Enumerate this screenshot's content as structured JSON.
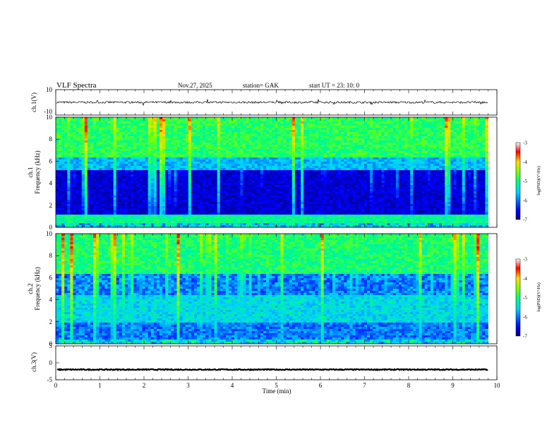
{
  "header": {
    "title": "VLF  Spectra",
    "date": "Nov.27, 2025",
    "station": "station= GAK",
    "start": "start  UT  =    23: 10: 0"
  },
  "chart_data": [
    {
      "type": "line",
      "panel": "ch1-waveform",
      "ylabel": "ch.1(V)",
      "ylim": [
        -10,
        10
      ],
      "yticks": [
        "10",
        "-10"
      ],
      "xlim": [
        0,
        10
      ],
      "baseline": 0,
      "color": "#000000"
    },
    {
      "type": "heatmap",
      "panel": "ch1-spectrogram",
      "ylabel": "ch.1\nFrequency  (kHz)",
      "ylim": [
        0,
        10
      ],
      "yticks": [
        "0",
        "2",
        "4",
        "6",
        "8",
        "10"
      ],
      "xlim": [
        0,
        10
      ],
      "data_extent_min": 9.8,
      "colorbar": {
        "label": "log(PSD)(V²/Hz)",
        "range": [
          -7,
          -3
        ],
        "ticks": [
          "-3",
          "-4",
          "-5",
          "-6",
          "-7"
        ]
      }
    },
    {
      "type": "heatmap",
      "panel": "ch2-spectrogram",
      "ylabel": "ch.2\nFrequency  (kHz)",
      "ylim": [
        0,
        10
      ],
      "yticks": [
        "0",
        "2",
        "4",
        "6",
        "8",
        "10"
      ],
      "xlim": [
        0,
        10
      ],
      "data_extent_min": 9.8,
      "colorbar": {
        "label": "log(PSD)(V²/Hz)",
        "range": [
          -7,
          -3
        ],
        "ticks": [
          "-3",
          "-4",
          "-5",
          "-6",
          "-7"
        ]
      }
    },
    {
      "type": "line",
      "panel": "ch3-waveform",
      "ylabel": "ch.3(V)",
      "ylim": [
        -5,
        5
      ],
      "yticks": [
        "5",
        "0",
        "-5"
      ],
      "xlim": [
        0,
        10
      ],
      "baseline": -2,
      "color": "#000000"
    }
  ],
  "xaxis": {
    "label": "Time  (min)",
    "ticks": [
      "0",
      "1",
      "2",
      "3",
      "4",
      "5",
      "6",
      "7",
      "8",
      "9",
      "10"
    ]
  },
  "colors": {
    "low": "#00007f",
    "mid": "#00ff80",
    "high": "#ff0000",
    "top": "#ffffff"
  }
}
